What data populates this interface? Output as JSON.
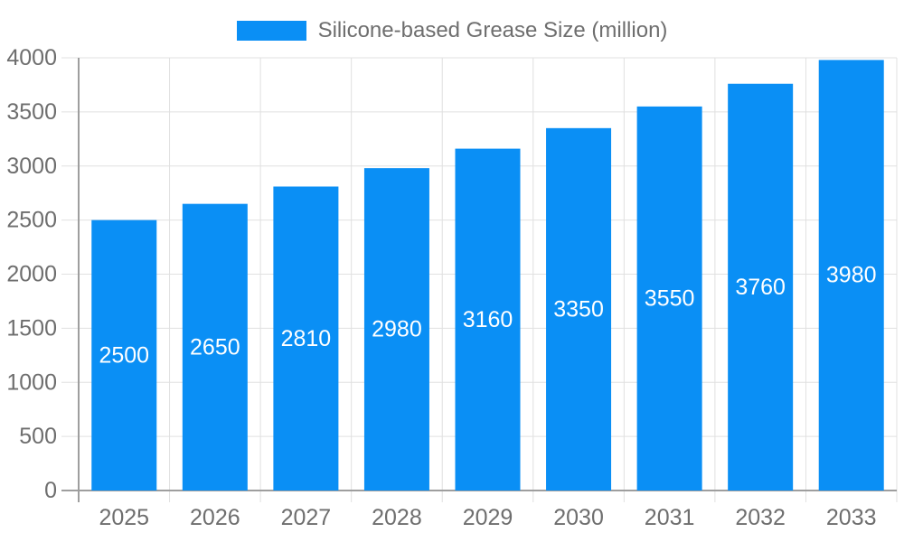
{
  "legend": {
    "swatch_icon": "series-color-swatch",
    "label": "Silicone-based Grease Size (million)"
  },
  "chart_data": {
    "type": "bar",
    "title": "Silicone-based Grease Size (million)",
    "categories": [
      "2025",
      "2026",
      "2027",
      "2028",
      "2029",
      "2030",
      "2031",
      "2032",
      "2033"
    ],
    "values": [
      2500,
      2650,
      2810,
      2980,
      3160,
      3350,
      3550,
      3760,
      3980
    ],
    "bar_value_labels": [
      "2500",
      "2650",
      "2810",
      "2980",
      "3160",
      "3350",
      "3550",
      "3760",
      "3980"
    ],
    "xlabel": "",
    "ylabel": "",
    "ylim": [
      0,
      4000
    ],
    "yticks": [
      0,
      500,
      1000,
      1500,
      2000,
      2500,
      3000,
      3500,
      4000
    ],
    "grid": true,
    "legend_position": "top-center",
    "colors": {
      "bar": "#0a8ff5",
      "bar_value_label": "#ffffff",
      "axis_text": "#6e6e6e",
      "grid_line": "#e0e0e0",
      "axis_line": "#9e9e9e",
      "background": "#ffffff"
    }
  }
}
